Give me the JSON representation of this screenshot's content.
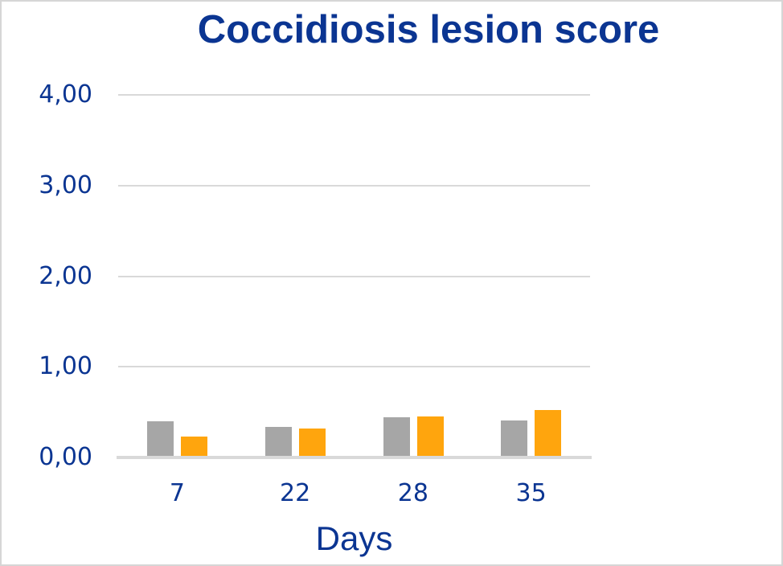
{
  "frame": {
    "background": "#ffffff",
    "border_color": "#d6d6d6"
  },
  "chart_data": {
    "type": "bar",
    "title": "Coccidiosis lesion score",
    "xlabel": "Days",
    "ylabel": "",
    "categories": [
      "7",
      "22",
      "28",
      "35"
    ],
    "series": [
      {
        "name": "gray",
        "color": "#a6a6a6",
        "values": [
          0.4,
          0.34,
          0.44,
          0.41
        ]
      },
      {
        "name": "orange",
        "color": "#ffa50d",
        "values": [
          0.23,
          0.32,
          0.45,
          0.52
        ]
      }
    ],
    "ylim": [
      0,
      4
    ],
    "ytick_step": 1,
    "ytick_labels": [
      "0,00",
      "1,00",
      "2,00",
      "3,00",
      "4,00"
    ],
    "grid": true,
    "legend": false,
    "gridline_color": "#d9d9d9",
    "axis_line_color": "#d9d9d9",
    "text_color": "#0b3592"
  }
}
